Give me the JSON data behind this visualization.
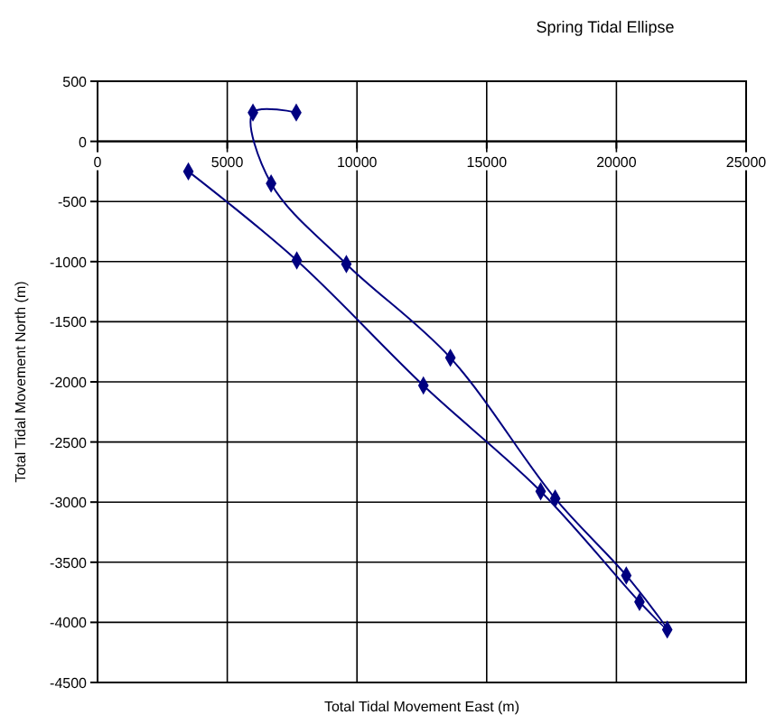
{
  "chart_data": {
    "type": "line",
    "title": "Spring Tidal Ellipse",
    "xlabel": "Total Tidal Movement East (m)",
    "ylabel": "Total Tidal Movement North (m)",
    "series": [
      {
        "color": "#000080",
        "x": [
          7660,
          5990,
          6690,
          9590,
          13600,
          17640,
          20380,
          21960,
          20890,
          17080,
          12560,
          7680,
          3500
        ],
        "values": [
          240,
          240,
          -350,
          -1020,
          -1800,
          -2970,
          -3610,
          -4060,
          -3830,
          -2910,
          -2030,
          -990,
          -250
        ]
      }
    ],
    "xlim": [
      0,
      25000
    ],
    "xticks": [
      0,
      5000,
      10000,
      15000,
      20000,
      25000
    ],
    "ylim": [
      -4500,
      500
    ],
    "yticks": [
      500,
      0,
      -500,
      -1000,
      -1500,
      -2000,
      -2500,
      -3000,
      -3500,
      -4000,
      -4500
    ],
    "grid": true,
    "marker": "diamond",
    "line_style": "solid"
  }
}
